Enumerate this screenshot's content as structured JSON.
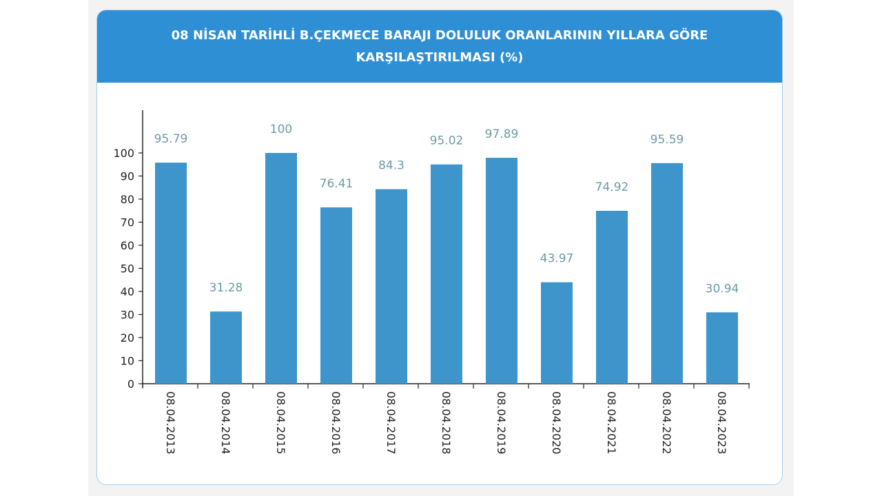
{
  "chart_data": {
    "type": "bar",
    "title": "08 NİSAN TARİHLİ B.ÇEKMECE BARAJI DOLULUK ORANLARININ YILLARA GÖRE KARŞILAŞTIRILMASI (%)",
    "categories": [
      "08.04.2013",
      "08.04.2014",
      "08.04.2015",
      "08.04.2016",
      "08.04.2017",
      "08.04.2018",
      "08.04.2019",
      "08.04.2020",
      "08.04.2021",
      "08.04.2022",
      "08.04.2023"
    ],
    "values": [
      95.79,
      31.28,
      100,
      76.41,
      84.3,
      95.02,
      97.89,
      43.97,
      74.92,
      95.59,
      30.94
    ],
    "value_labels": [
      "95.79",
      "31.28",
      "100",
      "76.41",
      "84.3",
      "95.02",
      "97.89",
      "43.97",
      "74.92",
      "95.59",
      "30.94"
    ],
    "y_ticks": [
      "0",
      "10",
      "20",
      "30",
      "40",
      "50",
      "60",
      "70",
      "80",
      "90",
      "100"
    ],
    "ylim": [
      0,
      100
    ],
    "grid": false,
    "legend": "none",
    "bar_color": "#3d95cc",
    "label_color": "#6a9aa8",
    "header_color": "#2f8fd5"
  }
}
